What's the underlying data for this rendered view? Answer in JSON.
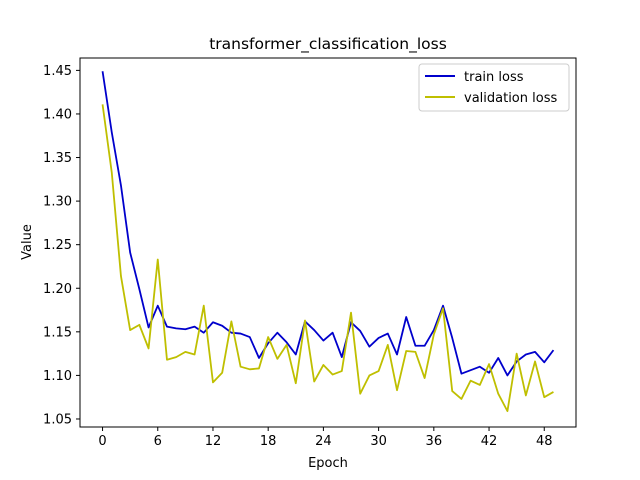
{
  "chart_data": {
    "type": "line",
    "title": "transformer_classification_loss",
    "xlabel": "Epoch",
    "ylabel": "Value",
    "xlim": [
      -2.45,
      51.45
    ],
    "ylim": [
      1.0408,
      1.4642
    ],
    "x_ticks": [
      0,
      6,
      12,
      18,
      24,
      30,
      36,
      42,
      48
    ],
    "y_ticks": [
      1.05,
      1.1,
      1.15,
      1.2,
      1.25,
      1.3,
      1.35,
      1.4,
      1.45
    ],
    "y_tick_labels": [
      "1.05",
      "1.10",
      "1.15",
      "1.20",
      "1.25",
      "1.30",
      "1.35",
      "1.40",
      "1.45"
    ],
    "grid": false,
    "legend_position": "upper right",
    "x": [
      0,
      1,
      2,
      3,
      4,
      5,
      6,
      7,
      8,
      9,
      10,
      11,
      12,
      13,
      14,
      15,
      16,
      17,
      18,
      19,
      20,
      21,
      22,
      23,
      24,
      25,
      26,
      27,
      28,
      29,
      30,
      31,
      32,
      33,
      34,
      35,
      36,
      37,
      38,
      39,
      40,
      41,
      42,
      43,
      44,
      45,
      46,
      47,
      48,
      49
    ],
    "series": [
      {
        "name": "train loss",
        "color": "#0000cc",
        "values": [
          1.449,
          1.379,
          1.318,
          1.241,
          1.199,
          1.155,
          1.18,
          1.156,
          1.154,
          1.153,
          1.156,
          1.149,
          1.161,
          1.157,
          1.149,
          1.148,
          1.144,
          1.12,
          1.137,
          1.149,
          1.138,
          1.124,
          1.162,
          1.152,
          1.14,
          1.149,
          1.121,
          1.161,
          1.151,
          1.133,
          1.143,
          1.148,
          1.124,
          1.167,
          1.134,
          1.134,
          1.152,
          1.18,
          1.143,
          1.102,
          1.106,
          1.11,
          1.103,
          1.12,
          1.1,
          1.116,
          1.124,
          1.127,
          1.115,
          1.129
        ]
      },
      {
        "name": "validation loss",
        "color": "#bfbf00",
        "values": [
          1.411,
          1.333,
          1.214,
          1.152,
          1.158,
          1.131,
          1.233,
          1.118,
          1.121,
          1.127,
          1.124,
          1.18,
          1.092,
          1.103,
          1.162,
          1.11,
          1.107,
          1.108,
          1.144,
          1.119,
          1.135,
          1.091,
          1.163,
          1.093,
          1.112,
          1.101,
          1.105,
          1.172,
          1.079,
          1.1,
          1.105,
          1.135,
          1.083,
          1.128,
          1.127,
          1.097,
          1.147,
          1.177,
          1.082,
          1.073,
          1.094,
          1.089,
          1.113,
          1.079,
          1.059,
          1.125,
          1.077,
          1.116,
          1.075,
          1.081
        ]
      }
    ]
  }
}
